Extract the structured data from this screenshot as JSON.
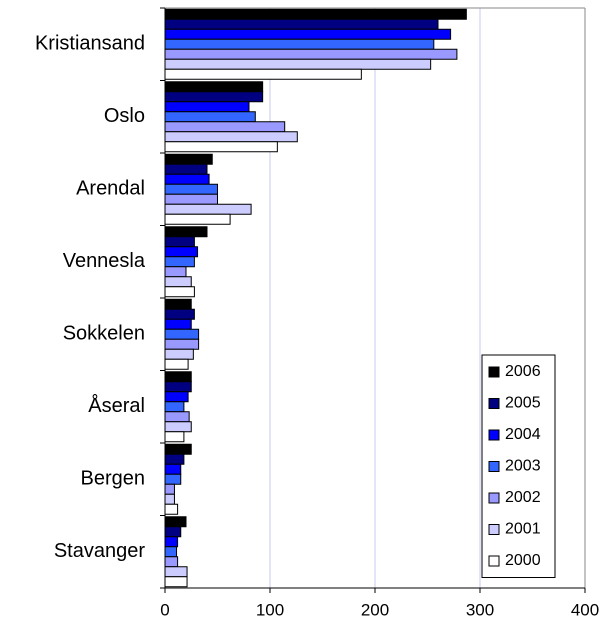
{
  "chart_data": {
    "type": "hbar",
    "categories": [
      "Kristiansand",
      "Oslo",
      "Arendal",
      "Vennesla",
      "Sokkelen",
      "Åseral",
      "Bergen",
      "Stavanger"
    ],
    "series": [
      {
        "name": "2006",
        "color": "#000000",
        "values": [
          287,
          93,
          45,
          40,
          25,
          25,
          25,
          20
        ]
      },
      {
        "name": "2005",
        "color": "#000080",
        "values": [
          260,
          93,
          40,
          28,
          28,
          25,
          18,
          15
        ]
      },
      {
        "name": "2004",
        "color": "#0000ff",
        "values": [
          272,
          80,
          42,
          31,
          25,
          22,
          15,
          12
        ]
      },
      {
        "name": "2003",
        "color": "#3366ff",
        "values": [
          256,
          86,
          50,
          28,
          32,
          18,
          15,
          11
        ]
      },
      {
        "name": "2002",
        "color": "#9999ff",
        "values": [
          278,
          114,
          50,
          20,
          32,
          23,
          9,
          12
        ]
      },
      {
        "name": "2001",
        "color": "#ccccff",
        "values": [
          253,
          126,
          82,
          25,
          27,
          25,
          9,
          21
        ]
      },
      {
        "name": "2000",
        "color": "#ffffff",
        "values": [
          187,
          107,
          62,
          28,
          22,
          18,
          12,
          21
        ]
      }
    ],
    "xlim": [
      0,
      400
    ],
    "xticks": [
      0,
      100,
      200,
      300,
      400
    ],
    "grid": true,
    "legend": "bottom-right"
  }
}
